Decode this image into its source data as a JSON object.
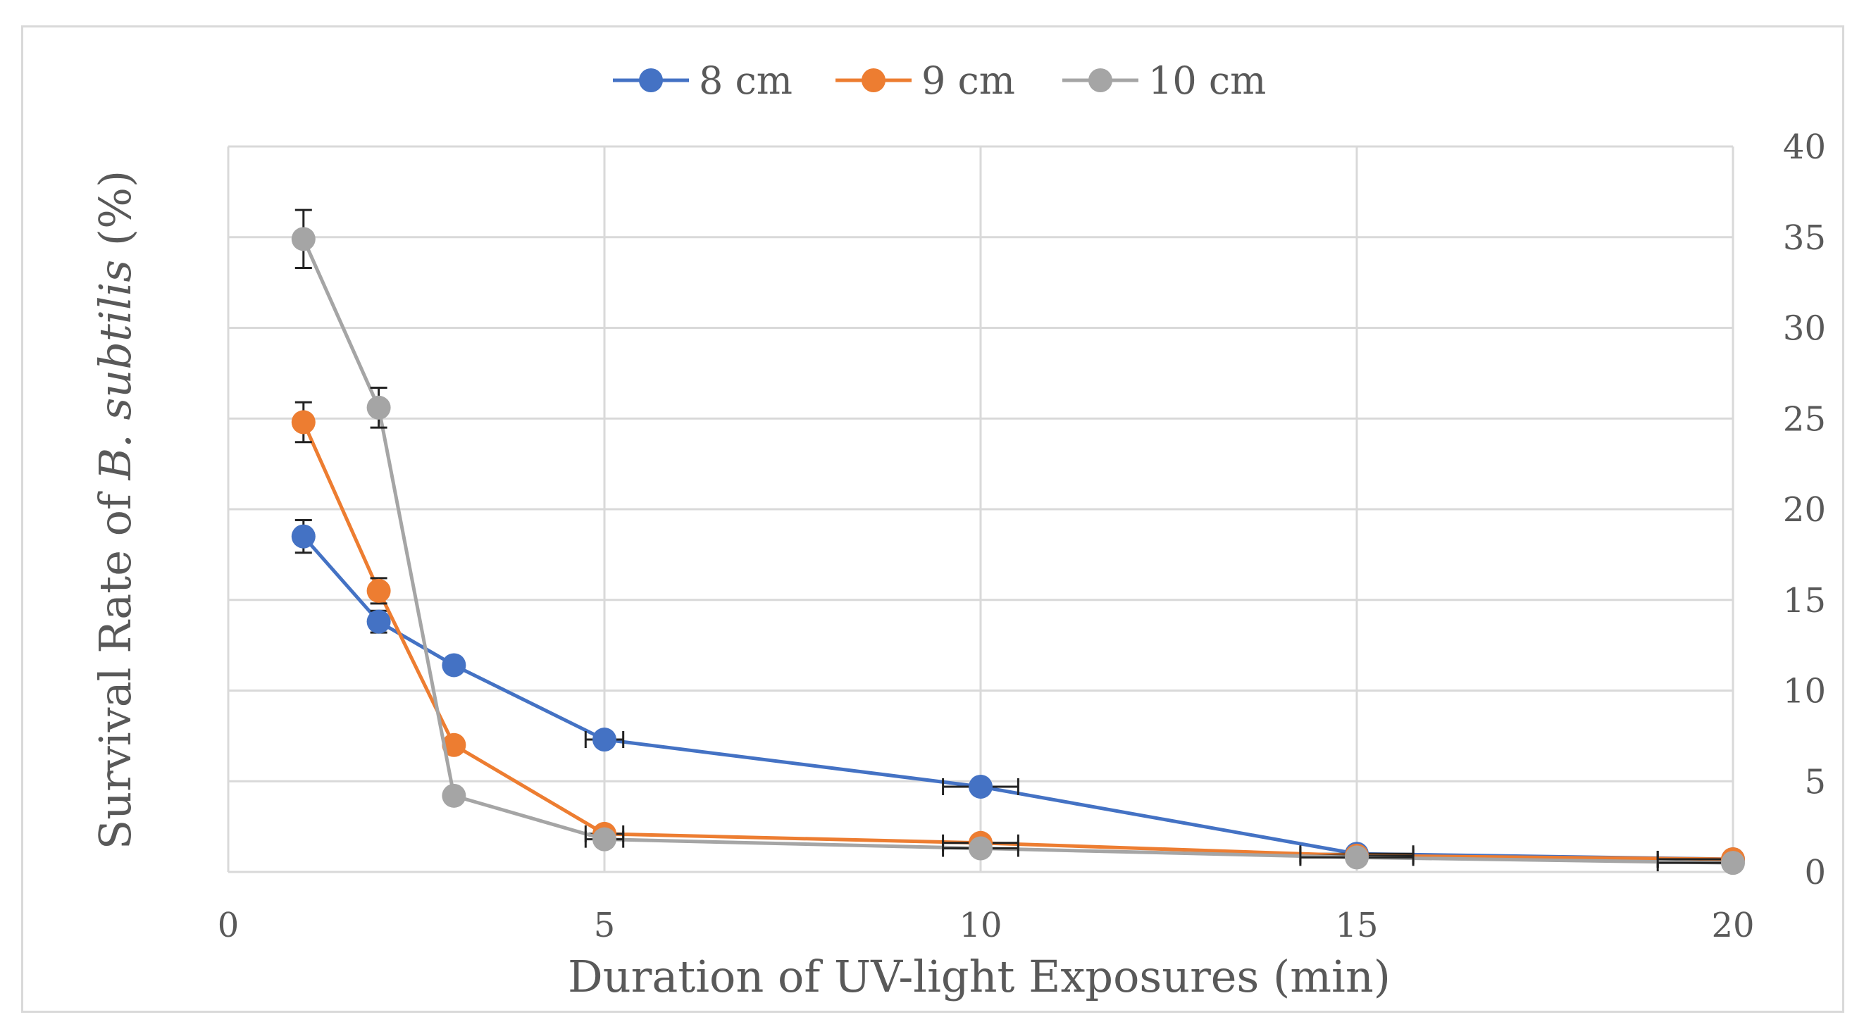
{
  "chart_data": {
    "type": "scatter",
    "xlabel": "Duration of UV-light Exposures (min)",
    "ylabel_parts": {
      "prefix": "Survival Rate of ",
      "italic": "B. subtilis",
      "suffix": " (%)"
    },
    "xlim": [
      0,
      20
    ],
    "ylim": [
      0,
      40
    ],
    "xticks": [
      0,
      5,
      10,
      15,
      20
    ],
    "yticks": [
      0,
      5,
      10,
      15,
      20,
      25,
      30,
      35,
      40
    ],
    "y_axis_side": "right",
    "grid": true,
    "legend_position": "top",
    "series": [
      {
        "name": "8 cm",
        "color": "#4472C4",
        "x": [
          1,
          2,
          3,
          5,
          10,
          15,
          20
        ],
        "y": [
          18.5,
          13.8,
          11.4,
          7.3,
          4.7,
          1.0,
          0.7
        ],
        "y_err": [
          0.9,
          0.6,
          0.4,
          0.3,
          0.2,
          0.2,
          0.1
        ],
        "x_err": [
          0,
          0,
          0,
          0.25,
          0.5,
          0.75,
          1.0
        ]
      },
      {
        "name": "9 cm",
        "color": "#ED7D31",
        "x": [
          1,
          2,
          3,
          5,
          10,
          15,
          20
        ],
        "y": [
          24.8,
          15.5,
          7.0,
          2.1,
          1.6,
          0.9,
          0.7
        ],
        "y_err": [
          1.1,
          0.7,
          0.3,
          0.2,
          0.2,
          0.1,
          0.1
        ],
        "x_err": [
          0,
          0,
          0,
          0.25,
          0.5,
          0.75,
          1.0
        ]
      },
      {
        "name": "10 cm",
        "color": "#A5A5A5",
        "x": [
          1,
          2,
          3,
          5,
          10,
          15,
          20
        ],
        "y": [
          34.9,
          25.6,
          4.2,
          1.8,
          1.3,
          0.8,
          0.5
        ],
        "y_err": [
          1.6,
          1.1,
          0.3,
          0.2,
          0.2,
          0.1,
          0.1
        ],
        "x_err": [
          0,
          0,
          0,
          0.25,
          0.5,
          0.75,
          1.0
        ]
      }
    ]
  }
}
